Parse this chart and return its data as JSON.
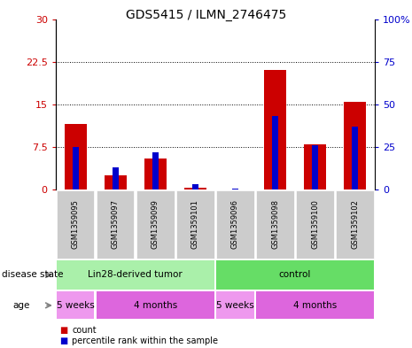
{
  "title": "GDS5415 / ILMN_2746475",
  "samples": [
    "GSM1359095",
    "GSM1359097",
    "GSM1359099",
    "GSM1359101",
    "GSM1359096",
    "GSM1359098",
    "GSM1359100",
    "GSM1359102"
  ],
  "counts": [
    11.5,
    2.5,
    5.5,
    0.3,
    0.05,
    21.0,
    8.0,
    15.5
  ],
  "percentile_ranks": [
    25.0,
    13.0,
    22.0,
    3.0,
    0.5,
    43.0,
    26.0,
    37.0
  ],
  "ylim_left": [
    0,
    30
  ],
  "ylim_right": [
    0,
    100
  ],
  "yticks_left": [
    0,
    7.5,
    15,
    22.5,
    30
  ],
  "yticks_right": [
    0,
    25,
    50,
    75,
    100
  ],
  "ytick_labels_left": [
    "0",
    "7.5",
    "15",
    "22.5",
    "30"
  ],
  "ytick_labels_right": [
    "0",
    "25",
    "50",
    "75",
    "100%"
  ],
  "bar_color_red": "#cc0000",
  "bar_color_blue": "#0000cc",
  "sample_box_color": "#cccccc",
  "disease_state_groups": [
    {
      "label": "Lin28-derived tumor",
      "start": 0,
      "end": 4,
      "color": "#aaf0aa"
    },
    {
      "label": "control",
      "start": 4,
      "end": 8,
      "color": "#66dd66"
    }
  ],
  "age_groups": [
    {
      "label": "5 weeks",
      "start": 0,
      "end": 1,
      "color": "#ee99ee"
    },
    {
      "label": "4 months",
      "start": 1,
      "end": 4,
      "color": "#dd66dd"
    },
    {
      "label": "5 weeks",
      "start": 4,
      "end": 5,
      "color": "#ee99ee"
    },
    {
      "label": "4 months",
      "start": 5,
      "end": 8,
      "color": "#dd66dd"
    }
  ],
  "disease_label": "disease state",
  "age_label": "age",
  "red_bar_width": 0.55,
  "blue_bar_width": 0.15
}
